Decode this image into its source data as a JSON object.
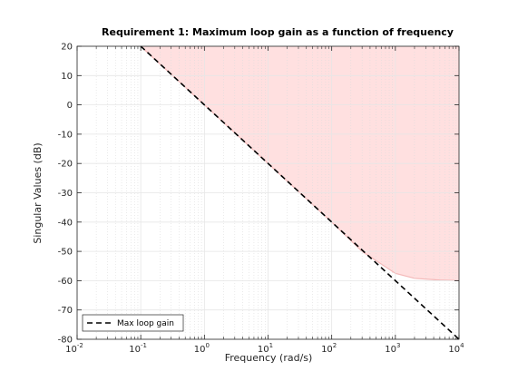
{
  "chart_data": {
    "type": "line",
    "title": "Requirement 1: Maximum loop gain as a function of frequency",
    "xlabel": "Frequency (rad/s)",
    "ylabel": "Singular Values (dB)",
    "xscale": "log",
    "xlim": [
      0.01,
      10000
    ],
    "ylim": [
      -80,
      20
    ],
    "x_tick_labels": [
      {
        "base": "10",
        "exp": "-2"
      },
      {
        "base": "10",
        "exp": "-1"
      },
      {
        "base": "10",
        "exp": "0"
      },
      {
        "base": "10",
        "exp": "1"
      },
      {
        "base": "10",
        "exp": "2"
      },
      {
        "base": "10",
        "exp": "3"
      },
      {
        "base": "10",
        "exp": "4"
      }
    ],
    "y_ticks": [
      20,
      10,
      0,
      -10,
      -20,
      -30,
      -40,
      -50,
      -60,
      -70,
      -80
    ],
    "grid": true,
    "legend_position": "bottom-left",
    "colors": {
      "line": "#000000",
      "region_fill": "#ffe0e0",
      "region_edge": "#f4b8b8",
      "grid": "#e6e6e6"
    },
    "series": [
      {
        "name": "Max loop gain",
        "style": "dashed",
        "x": [
          0.1,
          1,
          10,
          100,
          1000,
          10000
        ],
        "y": [
          20,
          0,
          -20,
          -40,
          -60,
          -80
        ]
      }
    ],
    "shaded_region": {
      "x": [
        0.1,
        1,
        10,
        100,
        300,
        1000,
        2000,
        5000,
        10000
      ],
      "y_lower": [
        20,
        0,
        -20,
        -40,
        -50,
        -57.5,
        -59.2,
        -59.8,
        -60
      ],
      "y_upper": 20
    }
  }
}
